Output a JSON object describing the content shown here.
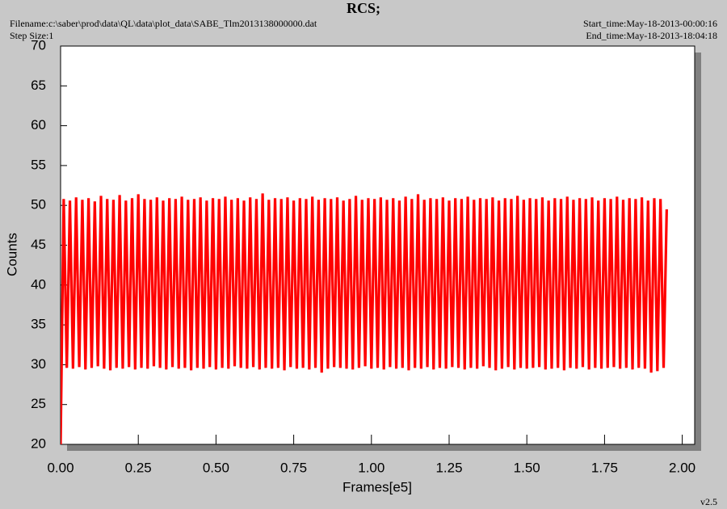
{
  "chart_data": {
    "type": "line",
    "title": "RCS;",
    "filename": "Filename:c:\\saber\\prod\\data\\QL\\data\\plot_data\\SABE_Tlm2013138000000.dat",
    "step_size": "Step Size:1",
    "start_time": "Start_time:May-18-2013-00:00:16",
    "end_time": "End_time:May-18-2013-18:04:18",
    "version": "v2.5",
    "x_label": "Frames[e5]",
    "y_label": "Counts",
    "color": "#ff0000",
    "xlim": [
      0,
      2.04
    ],
    "ylim": [
      20,
      70
    ],
    "xticks": [
      {
        "value": 0,
        "label": "0.00"
      },
      {
        "value": 0.25,
        "label": "0.25"
      },
      {
        "value": 0.5,
        "label": "0.50"
      },
      {
        "value": 0.75,
        "label": "0.75"
      },
      {
        "value": 1,
        "label": "1.00"
      },
      {
        "value": 1.25,
        "label": "1.25"
      },
      {
        "value": 1.5,
        "label": "1.50"
      },
      {
        "value": 1.75,
        "label": "1.75"
      },
      {
        "value": 2,
        "label": "2.00"
      }
    ],
    "yticks": [
      20,
      25,
      30,
      35,
      40,
      45,
      50,
      55,
      60,
      65,
      70
    ],
    "x": [
      0,
      0.01,
      0.02,
      0.03,
      0.04,
      0.05,
      0.06,
      0.07,
      0.08,
      0.09,
      0.1,
      0.11,
      0.12,
      0.13,
      0.14,
      0.15,
      0.16,
      0.17,
      0.18,
      0.19,
      0.2,
      0.21,
      0.22,
      0.23,
      0.24,
      0.25,
      0.26,
      0.27,
      0.28,
      0.29,
      0.3,
      0.31,
      0.32,
      0.33,
      0.34,
      0.35,
      0.36,
      0.37,
      0.38,
      0.39,
      0.4,
      0.41,
      0.42,
      0.43,
      0.44,
      0.45,
      0.46,
      0.47,
      0.48,
      0.49,
      0.5,
      0.51,
      0.52,
      0.53,
      0.54,
      0.55,
      0.56,
      0.57,
      0.58,
      0.59,
      0.6,
      0.61,
      0.62,
      0.63,
      0.64,
      0.65,
      0.66,
      0.67,
      0.68,
      0.69,
      0.7,
      0.71,
      0.72,
      0.73,
      0.74,
      0.75,
      0.76,
      0.77,
      0.78,
      0.79,
      0.8,
      0.81,
      0.82,
      0.83,
      0.84,
      0.85,
      0.86,
      0.87,
      0.88,
      0.89,
      0.9,
      0.91,
      0.92,
      0.93,
      0.94,
      0.95,
      0.96,
      0.97,
      0.98,
      0.99,
      1,
      1.01,
      1.02,
      1.03,
      1.04,
      1.05,
      1.06,
      1.07,
      1.08,
      1.09,
      1.1,
      1.11,
      1.12,
      1.13,
      1.14,
      1.15,
      1.16,
      1.17,
      1.18,
      1.19,
      1.2,
      1.21,
      1.22,
      1.23,
      1.24,
      1.25,
      1.26,
      1.27,
      1.28,
      1.29,
      1.3,
      1.31,
      1.32,
      1.33,
      1.34,
      1.35,
      1.36,
      1.37,
      1.38,
      1.39,
      1.4,
      1.41,
      1.42,
      1.43,
      1.44,
      1.45,
      1.46,
      1.47,
      1.48,
      1.49,
      1.5,
      1.51,
      1.52,
      1.53,
      1.54,
      1.55,
      1.56,
      1.57,
      1.58,
      1.59,
      1.6,
      1.61,
      1.62,
      1.63,
      1.64,
      1.65,
      1.66,
      1.67,
      1.68,
      1.69,
      1.7,
      1.71,
      1.72,
      1.73,
      1.74,
      1.75,
      1.76,
      1.77,
      1.78,
      1.79,
      1.8,
      1.81,
      1.82,
      1.83,
      1.84,
      1.85,
      1.86,
      1.87,
      1.88,
      1.89,
      1.9,
      1.91,
      1.92,
      1.93,
      1.94,
      1.95
    ],
    "values": [
      20,
      50.8,
      29.6,
      50.6,
      29.5,
      51.0,
      29.7,
      50.7,
      29.4,
      50.9,
      29.6,
      50.5,
      29.8,
      51.2,
      29.5,
      50.8,
      29.3,
      50.7,
      29.6,
      51.3,
      29.5,
      50.6,
      29.7,
      50.9,
      29.4,
      51.4,
      29.6,
      50.8,
      29.5,
      50.7,
      29.8,
      51.0,
      29.6,
      50.6,
      29.4,
      50.9,
      29.7,
      50.8,
      29.5,
      51.1,
      29.6,
      50.7,
      29.3,
      50.8,
      29.6,
      51.0,
      29.5,
      50.6,
      29.7,
      50.9,
      29.4,
      50.8,
      29.6,
      51.1,
      29.5,
      50.7,
      29.8,
      50.9,
      29.6,
      50.6,
      29.5,
      51.0,
      29.7,
      50.8,
      29.4,
      51.5,
      29.6,
      50.7,
      29.5,
      50.9,
      29.6,
      50.8,
      29.3,
      51.0,
      29.7,
      50.6,
      29.5,
      50.9,
      29.6,
      50.8,
      29.4,
      51.1,
      29.6,
      50.7,
      29.0,
      50.9,
      29.5,
      50.8,
      29.7,
      51.0,
      29.6,
      50.6,
      29.5,
      50.8,
      29.4,
      51.2,
      29.6,
      50.7,
      29.8,
      50.9,
      29.5,
      50.8,
      29.6,
      51.0,
      29.4,
      50.7,
      29.7,
      50.9,
      29.5,
      50.6,
      29.6,
      51.1,
      29.3,
      50.8,
      29.6,
      51.4,
      29.5,
      50.7,
      29.7,
      50.9,
      29.4,
      50.8,
      29.6,
      51.0,
      29.5,
      50.6,
      29.7,
      50.9,
      29.6,
      50.8,
      29.4,
      51.1,
      29.6,
      50.7,
      29.5,
      50.9,
      29.8,
      50.8,
      29.6,
      51.0,
      29.3,
      50.6,
      29.5,
      50.9,
      29.7,
      50.8,
      29.4,
      51.2,
      29.6,
      50.7,
      29.5,
      50.9,
      29.6,
      50.8,
      29.7,
      51.0,
      29.4,
      50.6,
      29.5,
      50.9,
      29.6,
      50.8,
      29.3,
      51.1,
      29.6,
      50.7,
      29.5,
      50.9,
      29.7,
      50.8,
      29.4,
      51.0,
      29.6,
      50.6,
      29.5,
      50.9,
      29.6,
      50.8,
      29.7,
      51.1,
      29.5,
      50.7,
      29.6,
      50.9,
      29.4,
      50.8,
      29.6,
      51.0,
      29.5,
      50.6,
      29.0,
      50.9,
      29.2,
      50.8,
      29.6,
      49.5
    ]
  }
}
